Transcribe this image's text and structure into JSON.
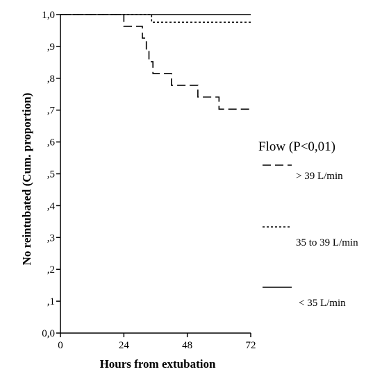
{
  "chart_data": {
    "type": "line",
    "xlabel": "Hours from extubation",
    "ylabel": "No reintubated (Cum. proportion)",
    "xlim": [
      0,
      72
    ],
    "ylim": [
      0,
      1
    ],
    "x_ticks": [
      0,
      24,
      48,
      72
    ],
    "x_tick_labels": [
      "0",
      "24",
      "48",
      "72"
    ],
    "y_ticks": [
      0,
      0.1,
      0.2,
      0.3,
      0.4,
      0.5,
      0.6,
      0.7,
      0.8,
      0.9,
      1.0
    ],
    "y_tick_labels": [
      "0,0",
      ",1",
      ",2",
      ",3",
      ",4",
      ",5",
      ",6",
      ",7",
      ",8",
      ",9",
      "1,0"
    ],
    "grid": false,
    "legend": {
      "title": "Flow (P<0,01)",
      "placement": "right"
    },
    "series": [
      {
        "name": "> 39 L/min",
        "style": "dashed",
        "color": "#000000",
        "steps": [
          [
            0,
            1.0
          ],
          [
            24,
            0.963
          ],
          [
            31,
            0.926
          ],
          [
            32.5,
            0.889
          ],
          [
            33.5,
            0.852
          ],
          [
            35,
            0.815
          ],
          [
            42,
            0.778
          ],
          [
            52,
            0.741
          ],
          [
            60,
            0.703
          ],
          [
            72,
            0.703
          ]
        ]
      },
      {
        "name": "35 to 39 L/min",
        "style": "dotted",
        "color": "#000000",
        "steps": [
          [
            0,
            1.0
          ],
          [
            34.5,
            0.976
          ],
          [
            72,
            0.976
          ]
        ]
      },
      {
        "name": "< 35 L/min",
        "style": "solid",
        "color": "#000000",
        "steps": [
          [
            0,
            1.0
          ],
          [
            72,
            1.0
          ]
        ]
      }
    ]
  }
}
